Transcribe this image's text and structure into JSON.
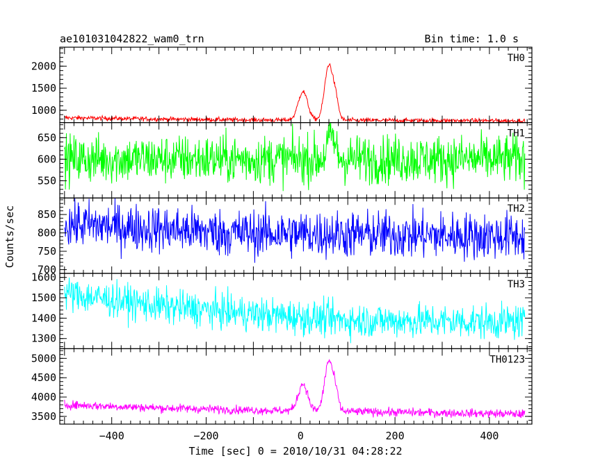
{
  "header": {
    "title_left": "ae101031042822_wam0_trn",
    "title_right": "Bin time: 1.0 s"
  },
  "axes": {
    "xlabel": "Time [sec] 0 = 2010/10/31 04:28:22",
    "ylabel": "Counts/sec"
  },
  "chart_data": {
    "type": "line",
    "xlim": [
      -510,
      490
    ],
    "x_ticks": [
      -400,
      -200,
      0,
      200,
      400
    ],
    "x_tick_labels": [
      "−400",
      "−200",
      "0",
      "200",
      "400"
    ],
    "grid": false,
    "series": [
      {
        "name": "TH0",
        "color": "#ff0000",
        "ylim": [
          720,
          2430
        ],
        "yticks": [
          1000,
          1500,
          2000
        ],
        "ytick_labels": [
          "1000",
          "1500",
          "2000"
        ],
        "baseline": [
          [
            -500,
            830
          ],
          [
            -300,
            800
          ],
          [
            -100,
            780
          ],
          [
            480,
            760
          ]
        ],
        "noise": 25,
        "bursts": [
          [
            5,
            650,
            10
          ],
          [
            60,
            1250,
            9
          ],
          [
            75,
            350,
            6
          ]
        ]
      },
      {
        "name": "TH1",
        "color": "#00ff00",
        "ylim": [
          510,
          685
        ],
        "yticks": [
          550,
          600,
          650
        ],
        "ytick_labels": [
          "550",
          "600",
          "650"
        ],
        "baseline": [
          [
            -500,
            600
          ],
          [
            480,
            600
          ]
        ],
        "noise": 28,
        "bursts": [
          [
            65,
            55,
            8
          ]
        ]
      },
      {
        "name": "TH2",
        "color": "#0000ff",
        "ylim": [
          690,
          895
        ],
        "yticks": [
          700,
          750,
          800,
          850
        ],
        "ytick_labels": [
          "700",
          "750",
          "800",
          "850"
        ],
        "baseline": [
          [
            -500,
            825
          ],
          [
            -150,
            800
          ],
          [
            480,
            790
          ]
        ],
        "noise": 32,
        "bursts": []
      },
      {
        "name": "TH3",
        "color": "#00ffff",
        "ylim": [
          1250,
          1620
        ],
        "yticks": [
          1300,
          1400,
          1500,
          1600
        ],
        "ytick_labels": [
          "1300",
          "1400",
          "1500",
          "1600"
        ],
        "baseline": [
          [
            -500,
            1520
          ],
          [
            -300,
            1460
          ],
          [
            -100,
            1420
          ],
          [
            100,
            1390
          ],
          [
            480,
            1380
          ]
        ],
        "noise": 42,
        "bursts": []
      },
      {
        "name": "TH0123",
        "color": "#ff00ff",
        "ylim": [
          3300,
          5250
        ],
        "yticks": [
          3500,
          4000,
          4500,
          5000
        ],
        "ytick_labels": [
          "3500",
          "4000",
          "4500",
          "5000"
        ],
        "baseline": [
          [
            -500,
            3800
          ],
          [
            -300,
            3720
          ],
          [
            -100,
            3660
          ],
          [
            480,
            3560
          ]
        ],
        "noise": 55,
        "bursts": [
          [
            5,
            700,
            10
          ],
          [
            60,
            1300,
            9
          ],
          [
            75,
            350,
            6
          ]
        ]
      }
    ]
  }
}
